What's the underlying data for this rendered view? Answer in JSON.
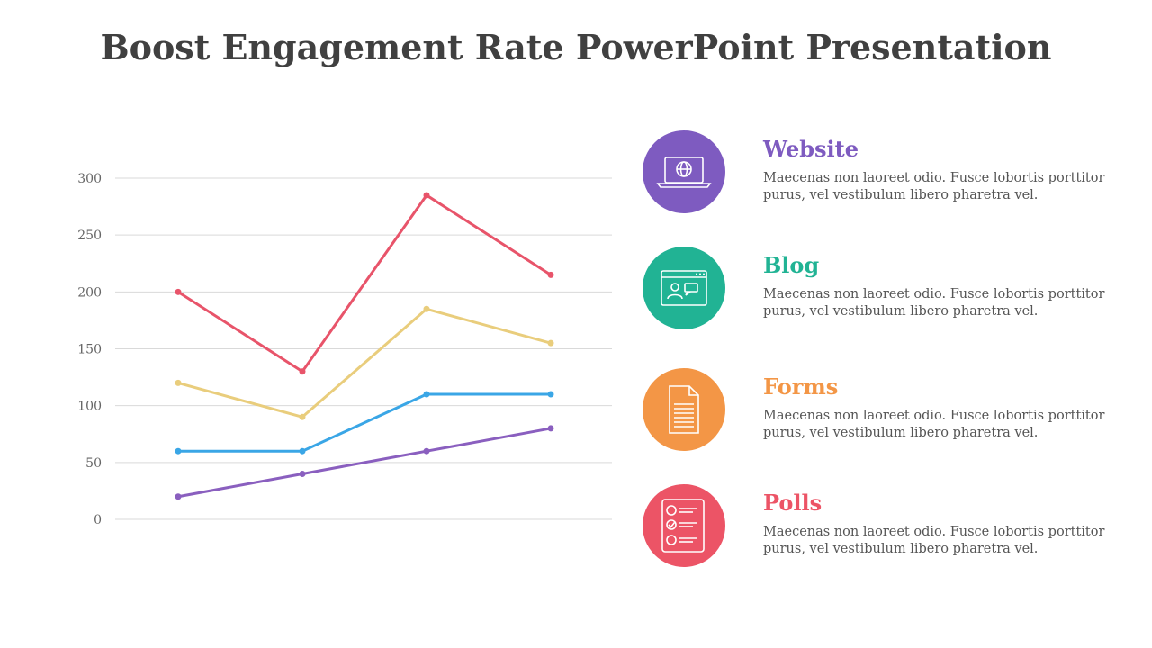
{
  "title": "Boost Engagement Rate PowerPoint Presentation",
  "chart_data": {
    "type": "line",
    "categories": [
      "",
      "",
      "",
      ""
    ],
    "ylim": [
      0,
      300
    ],
    "yticks": [
      0,
      50,
      100,
      150,
      200,
      250,
      300
    ],
    "grid": true,
    "legend": "none",
    "series": [
      {
        "color": "#E8546A",
        "values": [
          200,
          130,
          285,
          215
        ]
      },
      {
        "color": "#E9CD7C",
        "values": [
          120,
          90,
          185,
          155
        ]
      },
      {
        "color": "#3AA6E6",
        "values": [
          60,
          60,
          110,
          110
        ]
      },
      {
        "color": "#8A5FBF",
        "values": [
          20,
          40,
          60,
          80
        ]
      }
    ]
  },
  "items": [
    {
      "title": "Website",
      "text": "Maecenas non laoreet odio. Fusce lobortis porttitor purus, vel vestibulum libero pharetra vel.",
      "color": "#7E5BC0",
      "icon": "laptop-globe-icon"
    },
    {
      "title": "Blog",
      "text": "Maecenas non laoreet odio. Fusce lobortis porttitor purus, vel vestibulum libero pharetra vel.",
      "color": "#21B394",
      "icon": "browser-chat-icon"
    },
    {
      "title": "Forms",
      "text": "Maecenas non laoreet odio. Fusce lobortis porttitor purus, vel vestibulum libero pharetra vel.",
      "color": "#F39646",
      "icon": "document-icon"
    },
    {
      "title": "Polls",
      "text": "Maecenas non laoreet odio. Fusce lobortis porttitor purus, vel vestibulum libero pharetra vel.",
      "color": "#EC5466",
      "icon": "checklist-icon"
    }
  ]
}
